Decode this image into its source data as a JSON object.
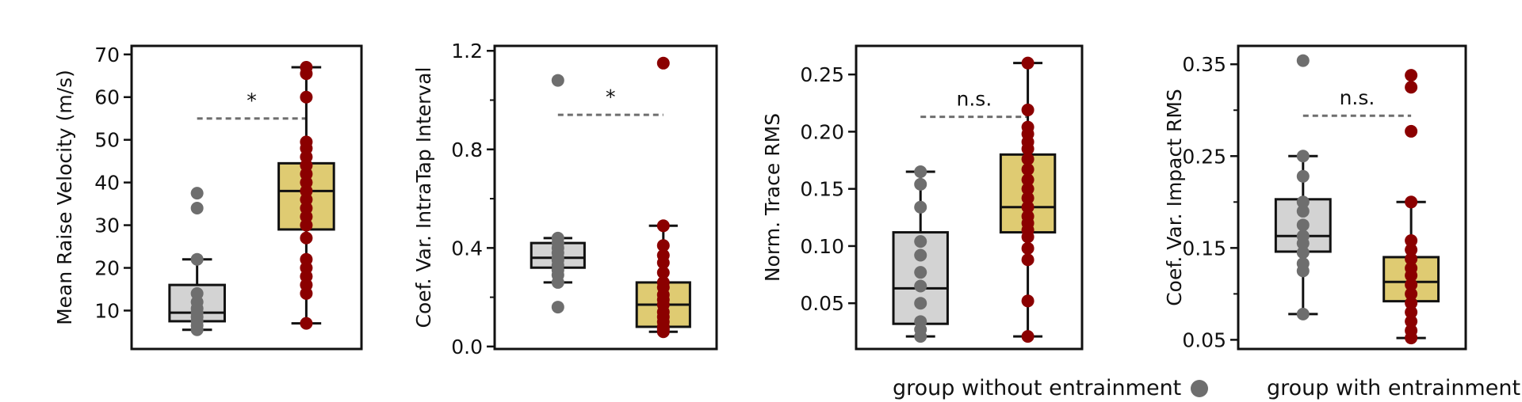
{
  "colors": {
    "without_box": "#d3d3d3",
    "without_point": "#6e6e6e",
    "with_box": "#dfcb72",
    "with_point": "#8b0000",
    "bracket": "#6e6e6e"
  },
  "legend": {
    "without": "group without entrainment",
    "with": "group with entrainment"
  },
  "chart_data": [
    {
      "type": "box",
      "ylabel": "Mean Raise Velocity (m/s)",
      "ylim": [
        1,
        72
      ],
      "yticks": [
        10,
        20,
        30,
        40,
        50,
        60,
        70
      ],
      "tick_labels": [
        "10",
        "20",
        "30",
        "40",
        "50",
        "60",
        "70"
      ],
      "significance": "*",
      "bracket_y": 55,
      "series": [
        {
          "key": "without",
          "box": {
            "whislo": 5.5,
            "q1": 7.5,
            "med": 9.5,
            "q3": 16,
            "whishi": 22
          },
          "points": [
            5.5,
            6.5,
            7.5,
            8.5,
            9.5,
            10.5,
            12,
            14,
            22,
            34,
            37.5
          ]
        },
        {
          "key": "with",
          "box": {
            "whislo": 7,
            "q1": 29,
            "med": 38,
            "q3": 44.5,
            "whishi": 67
          },
          "points": [
            7,
            14,
            16,
            18,
            20,
            22,
            27,
            30,
            32,
            34,
            36,
            38,
            40,
            42,
            44,
            46,
            48,
            49.5,
            60,
            65.5,
            67
          ]
        }
      ]
    },
    {
      "type": "box",
      "ylabel": "Coef. Var. IntraTap Interval",
      "ylim": [
        -0.01,
        1.22
      ],
      "yticks": [
        0.0,
        0.4,
        0.8,
        1.2
      ],
      "tick_labels": [
        "0.0",
        "0.4",
        "0.8",
        "1.2"
      ],
      "minor_yticks": [
        0.2,
        0.6,
        1.0
      ],
      "significance": "*",
      "bracket_y": 0.94,
      "series": [
        {
          "key": "without",
          "box": {
            "whislo": 0.26,
            "q1": 0.32,
            "med": 0.36,
            "q3": 0.42,
            "whishi": 0.44
          },
          "points": [
            0.16,
            0.26,
            0.29,
            0.31,
            0.33,
            0.35,
            0.36,
            0.38,
            0.4,
            0.42,
            0.44,
            1.08
          ]
        },
        {
          "key": "with",
          "box": {
            "whislo": 0.06,
            "q1": 0.08,
            "med": 0.17,
            "q3": 0.26,
            "whishi": 0.49
          },
          "points": [
            0.06,
            0.07,
            0.08,
            0.1,
            0.12,
            0.14,
            0.17,
            0.19,
            0.21,
            0.24,
            0.26,
            0.3,
            0.34,
            0.37,
            0.41,
            0.49,
            1.15
          ]
        }
      ]
    },
    {
      "type": "box",
      "ylabel": "Norm. Trace RMS",
      "ylim": [
        0.01,
        0.275
      ],
      "yticks": [
        0.05,
        0.1,
        0.15,
        0.2,
        0.25
      ],
      "tick_labels": [
        "0.05",
        "0.10",
        "0.15",
        "0.20",
        "0.25"
      ],
      "significance": "n.s.",
      "bracket_y": 0.213,
      "series": [
        {
          "key": "without",
          "box": {
            "whislo": 0.021,
            "q1": 0.032,
            "med": 0.063,
            "q3": 0.112,
            "whishi": 0.165
          },
          "points": [
            0.021,
            0.027,
            0.034,
            0.05,
            0.065,
            0.077,
            0.092,
            0.104,
            0.134,
            0.154,
            0.165
          ]
        },
        {
          "key": "with",
          "box": {
            "whislo": 0.021,
            "q1": 0.112,
            "med": 0.134,
            "q3": 0.18,
            "whishi": 0.26
          },
          "points": [
            0.021,
            0.052,
            0.088,
            0.098,
            0.108,
            0.114,
            0.12,
            0.126,
            0.134,
            0.142,
            0.15,
            0.158,
            0.167,
            0.176,
            0.185,
            0.191,
            0.198,
            0.204,
            0.219,
            0.26
          ]
        }
      ]
    },
    {
      "type": "box",
      "ylabel": "Coef. Var. Impact RMS",
      "ylim": [
        0.04,
        0.37
      ],
      "yticks": [
        0.05,
        0.15,
        0.25,
        0.35
      ],
      "tick_labels": [
        "0.05",
        "0.15",
        "0.25",
        "0.35"
      ],
      "minor_yticks": [
        0.1,
        0.2,
        0.3
      ],
      "significance": "n.s.",
      "bracket_y": 0.294,
      "series": [
        {
          "key": "without",
          "box": {
            "whislo": 0.078,
            "q1": 0.146,
            "med": 0.163,
            "q3": 0.203,
            "whishi": 0.25
          },
          "points": [
            0.078,
            0.125,
            0.133,
            0.145,
            0.155,
            0.163,
            0.175,
            0.19,
            0.2,
            0.228,
            0.25,
            0.354
          ]
        },
        {
          "key": "with",
          "box": {
            "whislo": 0.052,
            "q1": 0.092,
            "med": 0.113,
            "q3": 0.14,
            "whishi": 0.2
          },
          "points": [
            0.052,
            0.06,
            0.07,
            0.08,
            0.09,
            0.1,
            0.11,
            0.12,
            0.128,
            0.138,
            0.148,
            0.158,
            0.2,
            0.277,
            0.325,
            0.338
          ]
        }
      ]
    }
  ]
}
